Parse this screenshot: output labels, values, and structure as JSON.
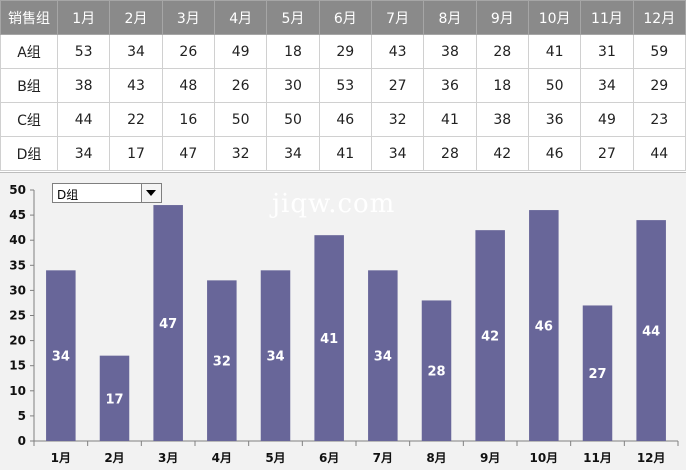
{
  "table": {
    "corner_header": "销售组",
    "months": [
      "1月",
      "2月",
      "3月",
      "4月",
      "5月",
      "6月",
      "7月",
      "8月",
      "9月",
      "10月",
      "11月",
      "12月"
    ],
    "rows": [
      {
        "group": "A组",
        "values": [
          53,
          34,
          26,
          49,
          18,
          29,
          43,
          38,
          28,
          41,
          31,
          59
        ]
      },
      {
        "group": "B组",
        "values": [
          38,
          43,
          48,
          26,
          30,
          53,
          27,
          36,
          18,
          50,
          34,
          29
        ]
      },
      {
        "group": "C组",
        "values": [
          44,
          22,
          16,
          50,
          50,
          46,
          32,
          41,
          38,
          36,
          49,
          23
        ]
      },
      {
        "group": "D组",
        "values": [
          34,
          17,
          47,
          32,
          34,
          41,
          34,
          28,
          42,
          46,
          27,
          44
        ]
      }
    ]
  },
  "dropdown": {
    "selected": "D组"
  },
  "watermark": "jiqw.com",
  "chart_data": {
    "type": "bar",
    "categories": [
      "1月",
      "2月",
      "3月",
      "4月",
      "5月",
      "6月",
      "7月",
      "8月",
      "9月",
      "10月",
      "11月",
      "12月"
    ],
    "series": [
      {
        "values": [
          34,
          17,
          47,
          32,
          34,
          41,
          34,
          28,
          42,
          46,
          27,
          44
        ]
      }
    ],
    "title": "",
    "xlabel": "",
    "ylabel": "",
    "ylim": [
      0,
      50
    ],
    "yticks": [
      0,
      5,
      10,
      15,
      20,
      25,
      30,
      35,
      40,
      45,
      50
    ],
    "grid": false,
    "data_labels": true,
    "bar_color": "#686699",
    "label_color": "#ffffff"
  }
}
